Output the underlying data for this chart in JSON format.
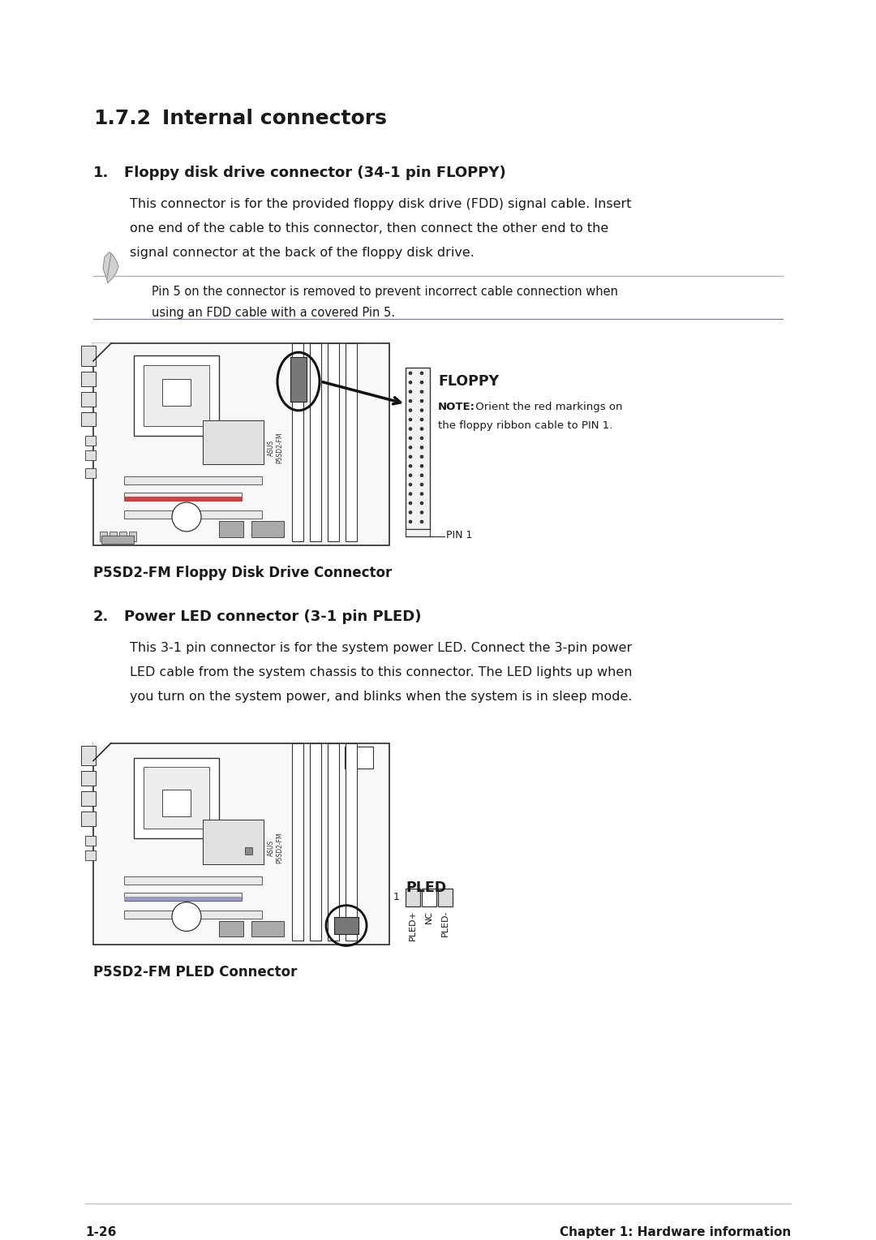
{
  "page_bg": "#ffffff",
  "text_color": "#1a1a1a",
  "section_title": "1.7.2",
  "section_title2": "Internal connectors",
  "item1_num": "1.",
  "item1_head": "Floppy disk drive connector (34-1 pin FLOPPY)",
  "item1_body_lines": [
    "This connector is for the provided floppy disk drive (FDD) signal cable. Insert",
    "one end of the cable to this connector, then connect the other end to the",
    "signal connector at the back of the floppy disk drive."
  ],
  "note1_lines": [
    "Pin 5 on the connector is removed to prevent incorrect cable connection when",
    "using an FDD cable with a covered Pin 5."
  ],
  "caption1": "P5SD2-FM Floppy Disk Drive Connector",
  "floppy_label": "FLOPPY",
  "floppy_note_bold": "NOTE:",
  "floppy_note_rest": " Orient the red markings on",
  "floppy_note2": "the floppy ribbon cable to PIN 1.",
  "floppy_pin1": "PIN 1",
  "item2_num": "2.",
  "item2_head": "Power LED connector (3-1 pin PLED)",
  "item2_body_lines": [
    "This 3-1 pin connector is for the system power LED. Connect the 3-pin power",
    "LED cable from the system chassis to this connector. The LED lights up when",
    "you turn on the system power, and blinks when the system is in sleep mode."
  ],
  "caption2": "P5SD2-FM PLED Connector",
  "pled_label": "PLED",
  "pled_pin_labels": [
    "PLED+",
    "NC",
    "PLED-"
  ],
  "footer_left": "1-26",
  "footer_right": "Chapter 1: Hardware information"
}
